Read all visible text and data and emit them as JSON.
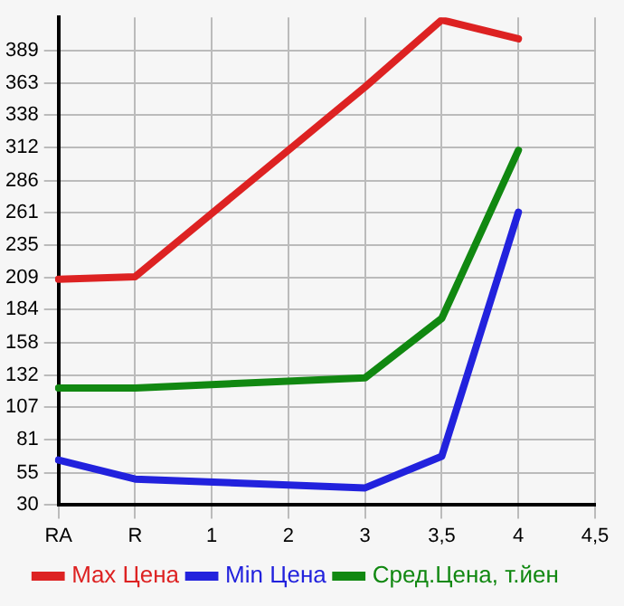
{
  "chart_data": {
    "type": "line",
    "categories": [
      "RA",
      "R",
      "1",
      "2",
      "3",
      "3,5",
      "4",
      "4,5"
    ],
    "series": [
      {
        "name": "Max Цена",
        "color": "#dd2222",
        "values": [
          208,
          210,
          null,
          null,
          360,
          413,
          398,
          null
        ]
      },
      {
        "name": "Min Цена",
        "color": "#2222dd",
        "values": [
          65,
          50,
          null,
          null,
          43,
          68,
          261,
          null
        ]
      },
      {
        "name": "Сред.Цена, т.йен",
        "color": "#118811",
        "values": [
          122,
          122,
          null,
          null,
          130,
          177,
          310,
          null
        ]
      }
    ],
    "ylim": [
      30,
      415
    ],
    "yticks": [
      30,
      55,
      81,
      107,
      132,
      158,
      184,
      209,
      235,
      261,
      286,
      312,
      338,
      363,
      389
    ],
    "grid": true,
    "legend": "bottom",
    "marker": "none",
    "line_style": "solid"
  }
}
